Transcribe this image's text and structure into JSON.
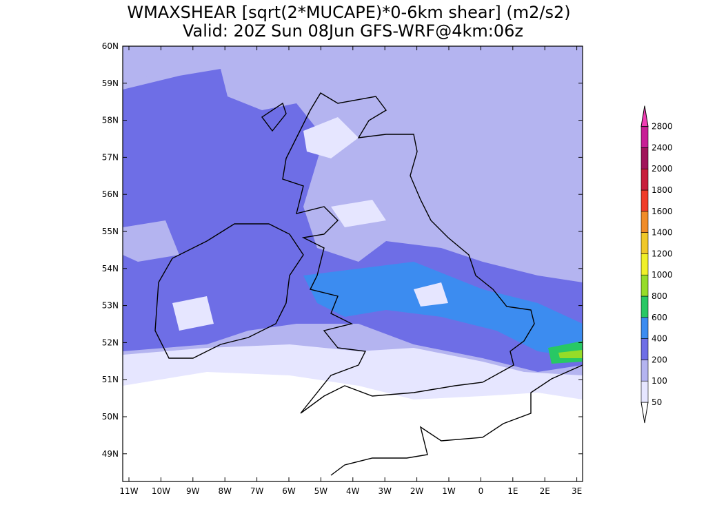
{
  "title": [
    "WMAXSHEAR [sqrt(2*MUCAPE)*0-6km shear] (m2/s2)",
    "Valid: 20Z Sun 08Jun GFS-WRF@4km:06z"
  ],
  "map": {
    "lat_labels": [
      "60N",
      "59N",
      "58N",
      "57N",
      "56N",
      "55N",
      "54N",
      "53N",
      "52N",
      "51N",
      "50N",
      "49N"
    ],
    "lon_labels": [
      "11W",
      "10W",
      "9W",
      "8W",
      "7W",
      "6W",
      "5W",
      "4W",
      "3W",
      "2W",
      "1W",
      "0",
      "1E",
      "2E",
      "3E"
    ]
  },
  "colorbar": {
    "levels": [
      50,
      100,
      200,
      400,
      600,
      800,
      1000,
      1200,
      1400,
      1600,
      1800,
      2000,
      2400,
      2800
    ],
    "colors": [
      "#ffffff",
      "#e6e6ff",
      "#b4b4f0",
      "#6e6ee6",
      "#3c8cf0",
      "#28c864",
      "#96dc28",
      "#f0f028",
      "#f0c828",
      "#f08c28",
      "#f03c28",
      "#c81e3c",
      "#a0145a",
      "#c81e96",
      "#f03cb4"
    ]
  }
}
